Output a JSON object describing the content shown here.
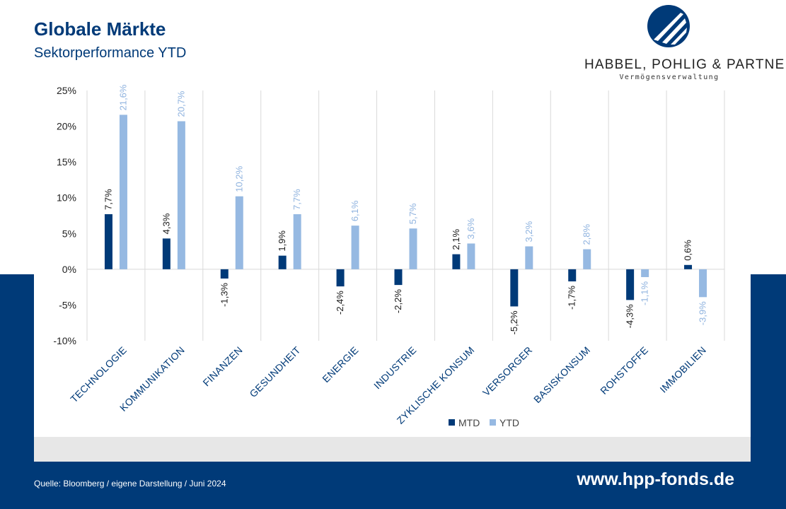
{
  "header": {
    "title": "Globale Märkte",
    "subtitle": "Sektorperformance YTD"
  },
  "logo": {
    "name": "HABBEL, POHLIG & PARTNER",
    "tagline": "Vermögensverwaltung"
  },
  "footer": {
    "source": "Quelle: Bloomberg / eigene Darstellung / Juni 2024",
    "url": "www.hpp-fonds.de"
  },
  "colors": {
    "navy": "#003A78",
    "mtd": "#003A78",
    "ytd": "#96B9E2",
    "band": "#E7E7E7"
  },
  "chart_data": {
    "type": "bar",
    "title": "",
    "xlabel": "",
    "ylabel": "",
    "ylim": [
      -10,
      25
    ],
    "yticks": [
      25,
      20,
      15,
      10,
      5,
      0,
      -5,
      -10
    ],
    "ytick_labels": [
      "25%",
      "20%",
      "15%",
      "10%",
      "5%",
      "0%",
      "-5%",
      "-10%"
    ],
    "grid": "vertical category separators",
    "legend_position": "bottom-center",
    "categories": [
      "TECHNOLOGIE",
      "KOMMUNIKATION",
      "FINANZEN",
      "GESUNDHEIT",
      "ENERGIE",
      "INDUSTRIE",
      "ZYKLISCHE KONSUM",
      "VERSORGER",
      "BASISKONSUM",
      "ROHSTOFFE",
      "IMMOBILIEN"
    ],
    "series": [
      {
        "name": "MTD",
        "values": [
          7.7,
          4.3,
          -1.3,
          1.9,
          -2.4,
          -2.2,
          2.1,
          -5.2,
          -1.7,
          -4.3,
          0.6
        ],
        "labels": [
          "7,7%",
          "4,3%",
          "-1,3%",
          "1,9%",
          "-2,4%",
          "-2,2%",
          "2,1%",
          "-5,2%",
          "-1,7%",
          "-4,3%",
          "0,6%"
        ]
      },
      {
        "name": "YTD",
        "values": [
          21.6,
          20.7,
          10.2,
          7.7,
          6.1,
          5.7,
          3.6,
          3.2,
          2.8,
          -1.1,
          -3.9
        ],
        "labels": [
          "21,6%",
          "20,7%",
          "10,2%",
          "7,7%",
          "6,1%",
          "5,7%",
          "3,6%",
          "3,2%",
          "2,8%",
          "-1,1%",
          "-3,9%"
        ]
      }
    ]
  }
}
